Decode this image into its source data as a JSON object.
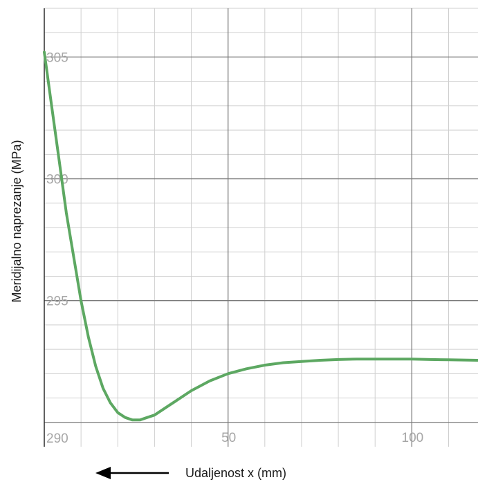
{
  "chart_data": {
    "type": "line",
    "title": "",
    "xlabel": "Udaljenost x (mm)",
    "ylabel": "Meridijalno naprezanje (MPa)",
    "xlim": [
      0,
      118
    ],
    "ylim": [
      289,
      307
    ],
    "x_ticks": [
      {
        "value": 50,
        "label": "50"
      },
      {
        "value": 100,
        "label": "100"
      }
    ],
    "y_ticks": [
      {
        "value": 290,
        "label": "290"
      },
      {
        "value": 295,
        "label": "295"
      },
      {
        "value": 300,
        "label": "300"
      },
      {
        "value": 305,
        "label": "305"
      }
    ],
    "grid": true,
    "line_color": "#5da862",
    "arrow_direction": "left",
    "series": [
      {
        "x": [
          0,
          2,
          4,
          6,
          8,
          10,
          12,
          14,
          16,
          18,
          20,
          22,
          24,
          26,
          28,
          30,
          32,
          34,
          36,
          40,
          45,
          50,
          55,
          60,
          65,
          70,
          75,
          80,
          85,
          90,
          95,
          100,
          105,
          110,
          118
        ],
        "y": [
          305.2,
          303.0,
          300.8,
          298.6,
          296.8,
          295.0,
          293.5,
          292.3,
          291.4,
          290.8,
          290.4,
          290.2,
          290.1,
          290.1,
          290.2,
          290.3,
          290.5,
          290.7,
          290.9,
          291.3,
          291.7,
          292.0,
          292.2,
          292.35,
          292.45,
          292.5,
          292.55,
          292.58,
          292.6,
          292.6,
          292.6,
          292.6,
          292.58,
          292.57,
          292.55
        ]
      }
    ]
  }
}
